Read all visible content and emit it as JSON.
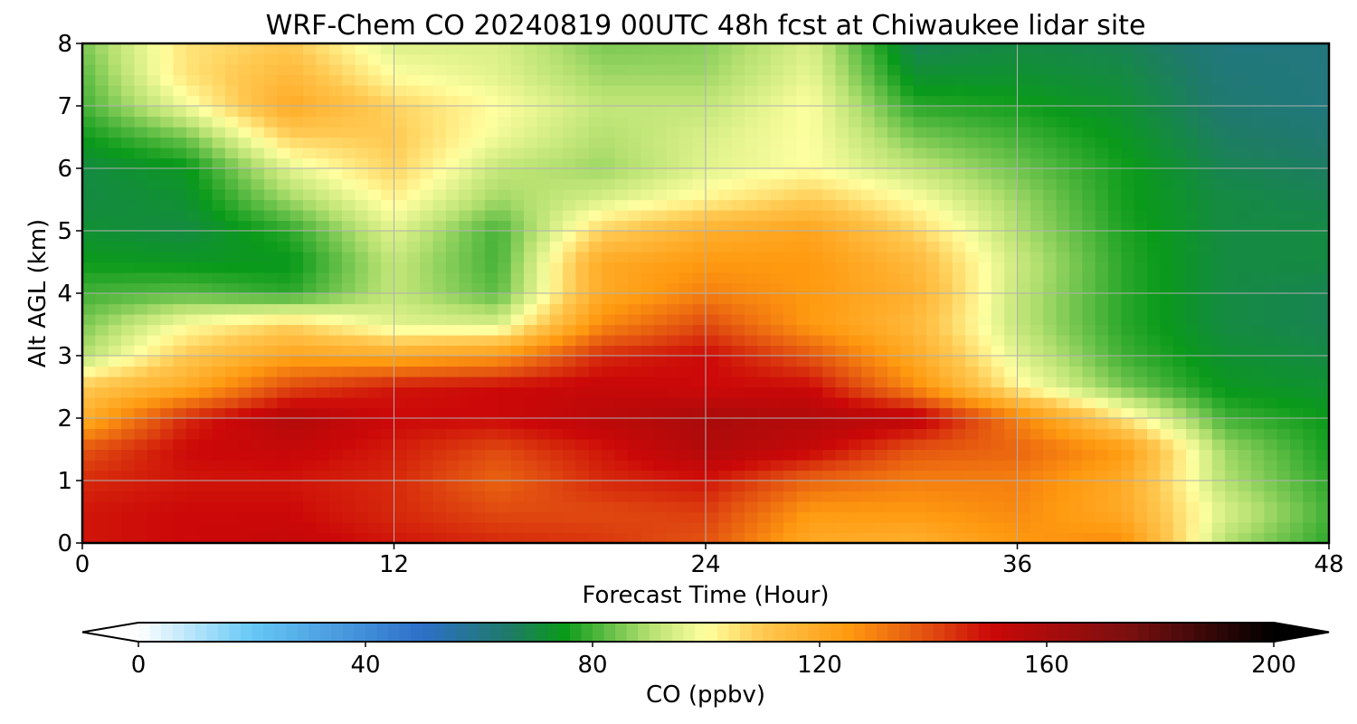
{
  "chart_data": {
    "type": "heatmap",
    "title": "WRF-Chem CO  20240819 00UTC 48h fcst at Chiwaukee lidar site",
    "xlabel": "Forecast Time (Hour)",
    "ylabel": "Alt AGL (km)",
    "xlim": [
      0,
      48
    ],
    "ylim": [
      0,
      8
    ],
    "x_ticks": [
      0,
      12,
      24,
      36,
      48
    ],
    "y_ticks": [
      0,
      1,
      2,
      3,
      4,
      5,
      6,
      7,
      8
    ],
    "grid": true,
    "colorbar": {
      "label": "CO  (ppbv)",
      "range": [
        0,
        200
      ],
      "ticks": [
        0,
        40,
        80,
        120,
        160,
        200
      ],
      "extend": "both",
      "stops": [
        {
          "value": 0,
          "color": "#ffffff"
        },
        {
          "value": 20,
          "color": "#66c8f5"
        },
        {
          "value": 50,
          "color": "#2d6fc8"
        },
        {
          "value": 65,
          "color": "#1f7a6a"
        },
        {
          "value": 75,
          "color": "#0a9a1a"
        },
        {
          "value": 90,
          "color": "#b4e070"
        },
        {
          "value": 100,
          "color": "#ffffa0"
        },
        {
          "value": 110,
          "color": "#ffc850"
        },
        {
          "value": 125,
          "color": "#ff9a10"
        },
        {
          "value": 140,
          "color": "#e04a10"
        },
        {
          "value": 150,
          "color": "#cc0808"
        },
        {
          "value": 175,
          "color": "#781010"
        },
        {
          "value": 200,
          "color": "#000000"
        }
      ]
    },
    "x": [
      0,
      4,
      8,
      12,
      16,
      20,
      24,
      28,
      32,
      36,
      40,
      44,
      48
    ],
    "y": [
      0,
      0.5,
      1,
      1.5,
      2,
      2.5,
      3,
      3.5,
      4,
      4.5,
      5,
      5.5,
      6,
      6.5,
      7,
      7.5,
      8
    ],
    "values": [
      [
        148,
        150,
        152,
        148,
        145,
        143,
        138,
        120,
        118,
        125,
        128,
        90,
        78
      ],
      [
        148,
        150,
        150,
        145,
        140,
        140,
        142,
        125,
        125,
        128,
        120,
        95,
        80
      ],
      [
        145,
        148,
        148,
        145,
        135,
        145,
        148,
        135,
        130,
        130,
        120,
        90,
        78
      ],
      [
        138,
        150,
        152,
        147,
        140,
        148,
        158,
        152,
        138,
        135,
        125,
        88,
        76
      ],
      [
        118,
        145,
        158,
        150,
        150,
        155,
        160,
        158,
        155,
        130,
        105,
        80,
        75
      ],
      [
        110,
        120,
        140,
        148,
        150,
        152,
        150,
        150,
        128,
        102,
        85,
        74,
        72
      ],
      [
        90,
        110,
        122,
        120,
        125,
        145,
        150,
        138,
        120,
        96,
        80,
        72,
        70
      ],
      [
        85,
        100,
        108,
        96,
        95,
        128,
        140,
        125,
        115,
        92,
        78,
        70,
        68
      ],
      [
        80,
        82,
        78,
        92,
        82,
        120,
        130,
        125,
        118,
        92,
        78,
        70,
        68
      ],
      [
        75,
        74,
        74,
        92,
        80,
        120,
        125,
        125,
        115,
        93,
        78,
        70,
        70
      ],
      [
        72,
        70,
        78,
        96,
        80,
        108,
        118,
        122,
        108,
        90,
        77,
        70,
        70
      ],
      [
        70,
        72,
        88,
        102,
        88,
        95,
        102,
        110,
        100,
        88,
        76,
        70,
        68
      ],
      [
        70,
        74,
        96,
        108,
        92,
        88,
        96,
        100,
        92,
        84,
        76,
        68,
        66
      ],
      [
        75,
        84,
        108,
        110,
        98,
        90,
        95,
        100,
        85,
        80,
        74,
        66,
        64
      ],
      [
        80,
        98,
        120,
        108,
        100,
        92,
        92,
        100,
        78,
        76,
        72,
        64,
        62
      ],
      [
        82,
        105,
        115,
        100,
        96,
        88,
        88,
        97,
        72,
        72,
        70,
        63,
        62
      ],
      [
        85,
        105,
        110,
        95,
        95,
        85,
        86,
        95,
        68,
        70,
        68,
        62,
        62
      ]
    ]
  }
}
